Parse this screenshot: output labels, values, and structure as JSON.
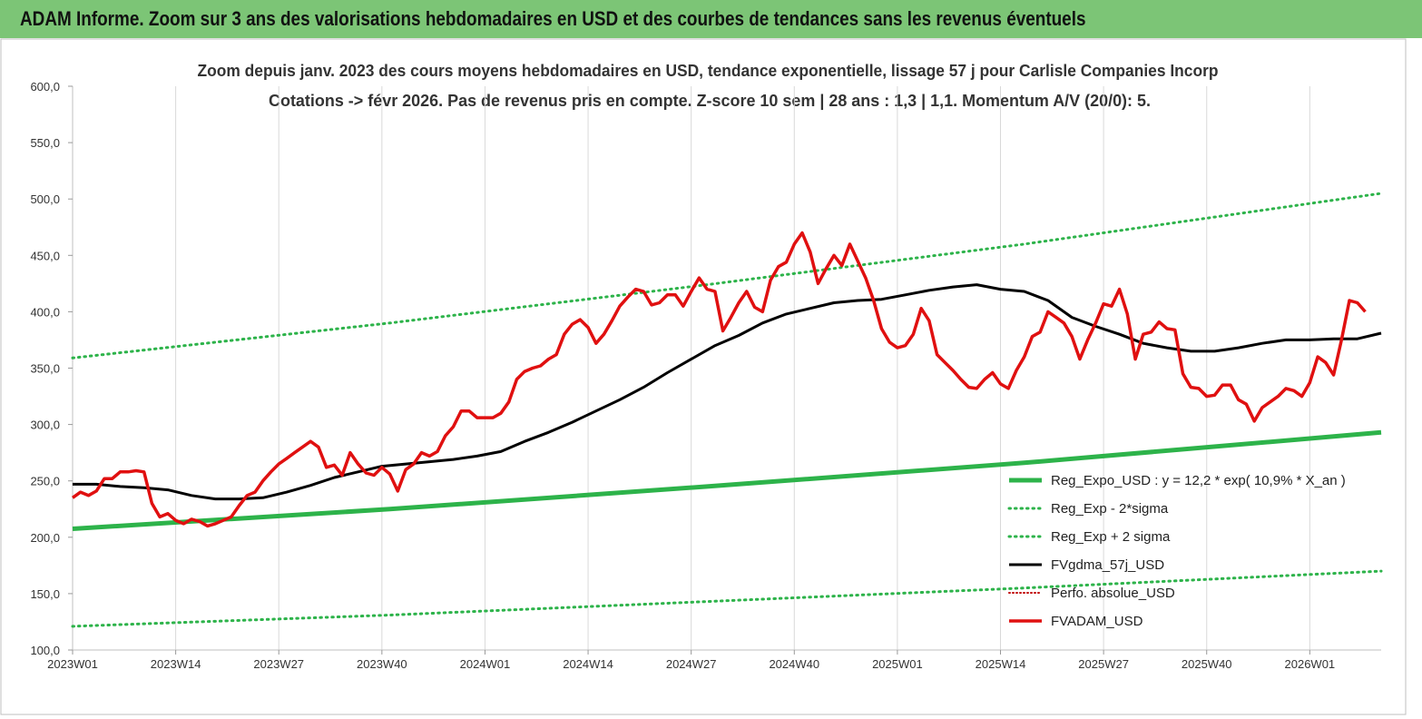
{
  "banner": {
    "title": "ADAM Informe. Zoom sur 3 ans des valorisations hebdomadaires en USD et des courbes de tendances sans les revenus éventuels"
  },
  "colors": {
    "banner_bg": "#7cc576",
    "reg_expo": "#2db34a",
    "sigma_lines": "#2db34a",
    "fvgdma": "#000000",
    "perfo": "#c00000",
    "fvadam": "#e01010"
  },
  "chart_data": {
    "type": "line",
    "title_lines": [
      "Zoom depuis janv. 2023 des cours moyens hebdomadaires en USD, tendance exponentielle, lissage 57 j pour Carlisle Companies Incorp",
      "Cotations -> févr 2026. Pas de revenus pris en compte. Z-score 10 sem | 28 ans : 1,3 | 1,1. Momentum A/V (20/0): 5."
    ],
    "x_ticks": [
      "2023W01",
      "2023W14",
      "2023W27",
      "2023W40",
      "2024W01",
      "2024W14",
      "2024W27",
      "2024W40",
      "2025W01",
      "2025W14",
      "2025W27",
      "2025W40",
      "2026W01"
    ],
    "x_tick_index": [
      0,
      13,
      26,
      39,
      52,
      65,
      78,
      91,
      104,
      117,
      130,
      143,
      156
    ],
    "x_range": [
      0,
      165
    ],
    "y_ticks": [
      "100,0",
      "150,0",
      "200,0",
      "250,0",
      "300,0",
      "350,0",
      "400,0",
      "450,0",
      "500,0",
      "550,0",
      "600,0"
    ],
    "ylim": [
      100,
      600
    ],
    "grid": "vertical",
    "legend_position": "bottom-right",
    "series": [
      {
        "name": "Reg_Expo_USD : y = 12,2 * exp( 10,9% * X_an )",
        "style": "solid-thick",
        "points": [
          [
            0,
            207.5
          ],
          [
            40,
            225
          ],
          [
            80,
            245
          ],
          [
            120,
            266
          ],
          [
            165,
            293
          ]
        ]
      },
      {
        "name": "Reg_Exp - 2*sigma",
        "style": "dotted",
        "points": [
          [
            0,
            121
          ],
          [
            40,
            131
          ],
          [
            80,
            143
          ],
          [
            120,
            155
          ],
          [
            165,
            170
          ]
        ]
      },
      {
        "name": "Reg_Exp + 2 sigma",
        "style": "dotted",
        "points": [
          [
            0,
            359
          ],
          [
            40,
            390
          ],
          [
            80,
            424
          ],
          [
            120,
            460
          ],
          [
            165,
            505
          ]
        ]
      },
      {
        "name": "FVgdma_57j_USD",
        "style": "solid",
        "points": [
          [
            0,
            247
          ],
          [
            3,
            247
          ],
          [
            6,
            245
          ],
          [
            9,
            244
          ],
          [
            12,
            242
          ],
          [
            15,
            237
          ],
          [
            18,
            234
          ],
          [
            21,
            234
          ],
          [
            24,
            235
          ],
          [
            27,
            240
          ],
          [
            30,
            246
          ],
          [
            33,
            253
          ],
          [
            36,
            258
          ],
          [
            39,
            263
          ],
          [
            42,
            265
          ],
          [
            45,
            267
          ],
          [
            48,
            269
          ],
          [
            51,
            272
          ],
          [
            54,
            276
          ],
          [
            57,
            285
          ],
          [
            60,
            293
          ],
          [
            63,
            302
          ],
          [
            66,
            312
          ],
          [
            69,
            322
          ],
          [
            72,
            333
          ],
          [
            75,
            346
          ],
          [
            78,
            358
          ],
          [
            81,
            370
          ],
          [
            84,
            379
          ],
          [
            87,
            390
          ],
          [
            90,
            398
          ],
          [
            93,
            403
          ],
          [
            96,
            408
          ],
          [
            99,
            410
          ],
          [
            102,
            411
          ],
          [
            105,
            415
          ],
          [
            108,
            419
          ],
          [
            111,
            422
          ],
          [
            114,
            424
          ],
          [
            117,
            420
          ],
          [
            120,
            418
          ],
          [
            123,
            410
          ],
          [
            126,
            395
          ],
          [
            129,
            387
          ],
          [
            132,
            380
          ],
          [
            135,
            372
          ],
          [
            138,
            368
          ],
          [
            141,
            365
          ],
          [
            144,
            365
          ],
          [
            147,
            368
          ],
          [
            150,
            372
          ],
          [
            153,
            375
          ],
          [
            156,
            375
          ],
          [
            159,
            376
          ],
          [
            162,
            376
          ],
          [
            165,
            381
          ]
        ]
      },
      {
        "name": "Perfo. absolue_USD",
        "style": "dotted-thin",
        "points": []
      },
      {
        "name": "FVADAM_USD",
        "style": "solid",
        "points": [
          [
            0,
            235
          ],
          [
            1,
            240
          ],
          [
            2,
            237
          ],
          [
            3,
            241
          ],
          [
            4,
            252
          ],
          [
            5,
            252
          ],
          [
            6,
            258
          ],
          [
            7,
            258
          ],
          [
            8,
            259
          ],
          [
            9,
            258
          ],
          [
            10,
            230
          ],
          [
            11,
            218
          ],
          [
            12,
            221
          ],
          [
            13,
            215
          ],
          [
            14,
            212
          ],
          [
            15,
            216
          ],
          [
            16,
            214
          ],
          [
            17,
            210
          ],
          [
            18,
            212
          ],
          [
            19,
            215
          ],
          [
            20,
            218
          ],
          [
            21,
            228
          ],
          [
            22,
            237
          ],
          [
            23,
            240
          ],
          [
            24,
            250
          ],
          [
            25,
            258
          ],
          [
            26,
            265
          ],
          [
            27,
            270
          ],
          [
            28,
            275
          ],
          [
            29,
            280
          ],
          [
            30,
            285
          ],
          [
            31,
            280
          ],
          [
            32,
            262
          ],
          [
            33,
            264
          ],
          [
            34,
            255
          ],
          [
            35,
            275
          ],
          [
            36,
            265
          ],
          [
            37,
            257
          ],
          [
            38,
            255
          ],
          [
            39,
            262
          ],
          [
            40,
            256
          ],
          [
            41,
            241
          ],
          [
            42,
            260
          ],
          [
            43,
            265
          ],
          [
            44,
            275
          ],
          [
            45,
            272
          ],
          [
            46,
            276
          ],
          [
            47,
            290
          ],
          [
            48,
            298
          ],
          [
            49,
            312
          ],
          [
            50,
            312
          ],
          [
            51,
            306
          ],
          [
            52,
            306
          ],
          [
            53,
            306
          ],
          [
            54,
            310
          ],
          [
            55,
            320
          ],
          [
            56,
            340
          ],
          [
            57,
            347
          ],
          [
            58,
            350
          ],
          [
            59,
            352
          ],
          [
            60,
            358
          ],
          [
            61,
            362
          ],
          [
            62,
            380
          ],
          [
            63,
            389
          ],
          [
            64,
            393
          ],
          [
            65,
            386
          ],
          [
            66,
            372
          ],
          [
            67,
            380
          ],
          [
            68,
            392
          ],
          [
            69,
            405
          ],
          [
            70,
            413
          ],
          [
            71,
            420
          ],
          [
            72,
            418
          ],
          [
            73,
            406
          ],
          [
            74,
            408
          ],
          [
            75,
            415
          ],
          [
            76,
            415
          ],
          [
            77,
            405
          ],
          [
            78,
            418
          ],
          [
            79,
            430
          ],
          [
            80,
            420
          ],
          [
            81,
            418
          ],
          [
            82,
            383
          ],
          [
            83,
            395
          ],
          [
            84,
            408
          ],
          [
            85,
            418
          ],
          [
            86,
            404
          ],
          [
            87,
            400
          ],
          [
            88,
            428
          ],
          [
            89,
            440
          ],
          [
            90,
            444
          ],
          [
            91,
            460
          ],
          [
            92,
            470
          ],
          [
            93,
            453
          ],
          [
            94,
            425
          ],
          [
            95,
            438
          ],
          [
            96,
            450
          ],
          [
            97,
            441
          ],
          [
            98,
            460
          ],
          [
            99,
            445
          ],
          [
            100,
            430
          ],
          [
            101,
            410
          ],
          [
            102,
            385
          ],
          [
            103,
            373
          ],
          [
            104,
            368
          ],
          [
            105,
            370
          ],
          [
            106,
            380
          ],
          [
            107,
            403
          ],
          [
            108,
            392
          ],
          [
            109,
            362
          ],
          [
            110,
            355
          ],
          [
            111,
            348
          ],
          [
            112,
            340
          ],
          [
            113,
            333
          ],
          [
            114,
            332
          ],
          [
            115,
            340
          ],
          [
            116,
            346
          ],
          [
            117,
            336
          ],
          [
            118,
            332
          ],
          [
            119,
            348
          ],
          [
            120,
            360
          ],
          [
            121,
            378
          ],
          [
            122,
            382
          ],
          [
            123,
            400
          ],
          [
            124,
            395
          ],
          [
            125,
            390
          ],
          [
            126,
            378
          ],
          [
            127,
            358
          ],
          [
            128,
            375
          ],
          [
            129,
            390
          ],
          [
            130,
            407
          ],
          [
            131,
            405
          ],
          [
            132,
            420
          ],
          [
            133,
            398
          ],
          [
            134,
            358
          ],
          [
            135,
            380
          ],
          [
            136,
            382
          ],
          [
            137,
            391
          ],
          [
            138,
            385
          ],
          [
            139,
            384
          ],
          [
            140,
            345
          ],
          [
            141,
            333
          ],
          [
            142,
            332
          ],
          [
            143,
            325
          ],
          [
            144,
            326
          ],
          [
            145,
            335
          ],
          [
            146,
            335
          ],
          [
            147,
            322
          ],
          [
            148,
            318
          ],
          [
            149,
            303
          ],
          [
            150,
            315
          ],
          [
            151,
            320
          ],
          [
            152,
            325
          ],
          [
            153,
            332
          ],
          [
            154,
            330
          ],
          [
            155,
            325
          ],
          [
            156,
            337
          ],
          [
            157,
            360
          ],
          [
            158,
            355
          ],
          [
            159,
            344
          ],
          [
            160,
            375
          ],
          [
            161,
            410
          ],
          [
            162,
            408
          ],
          [
            163,
            400
          ]
        ]
      }
    ]
  }
}
